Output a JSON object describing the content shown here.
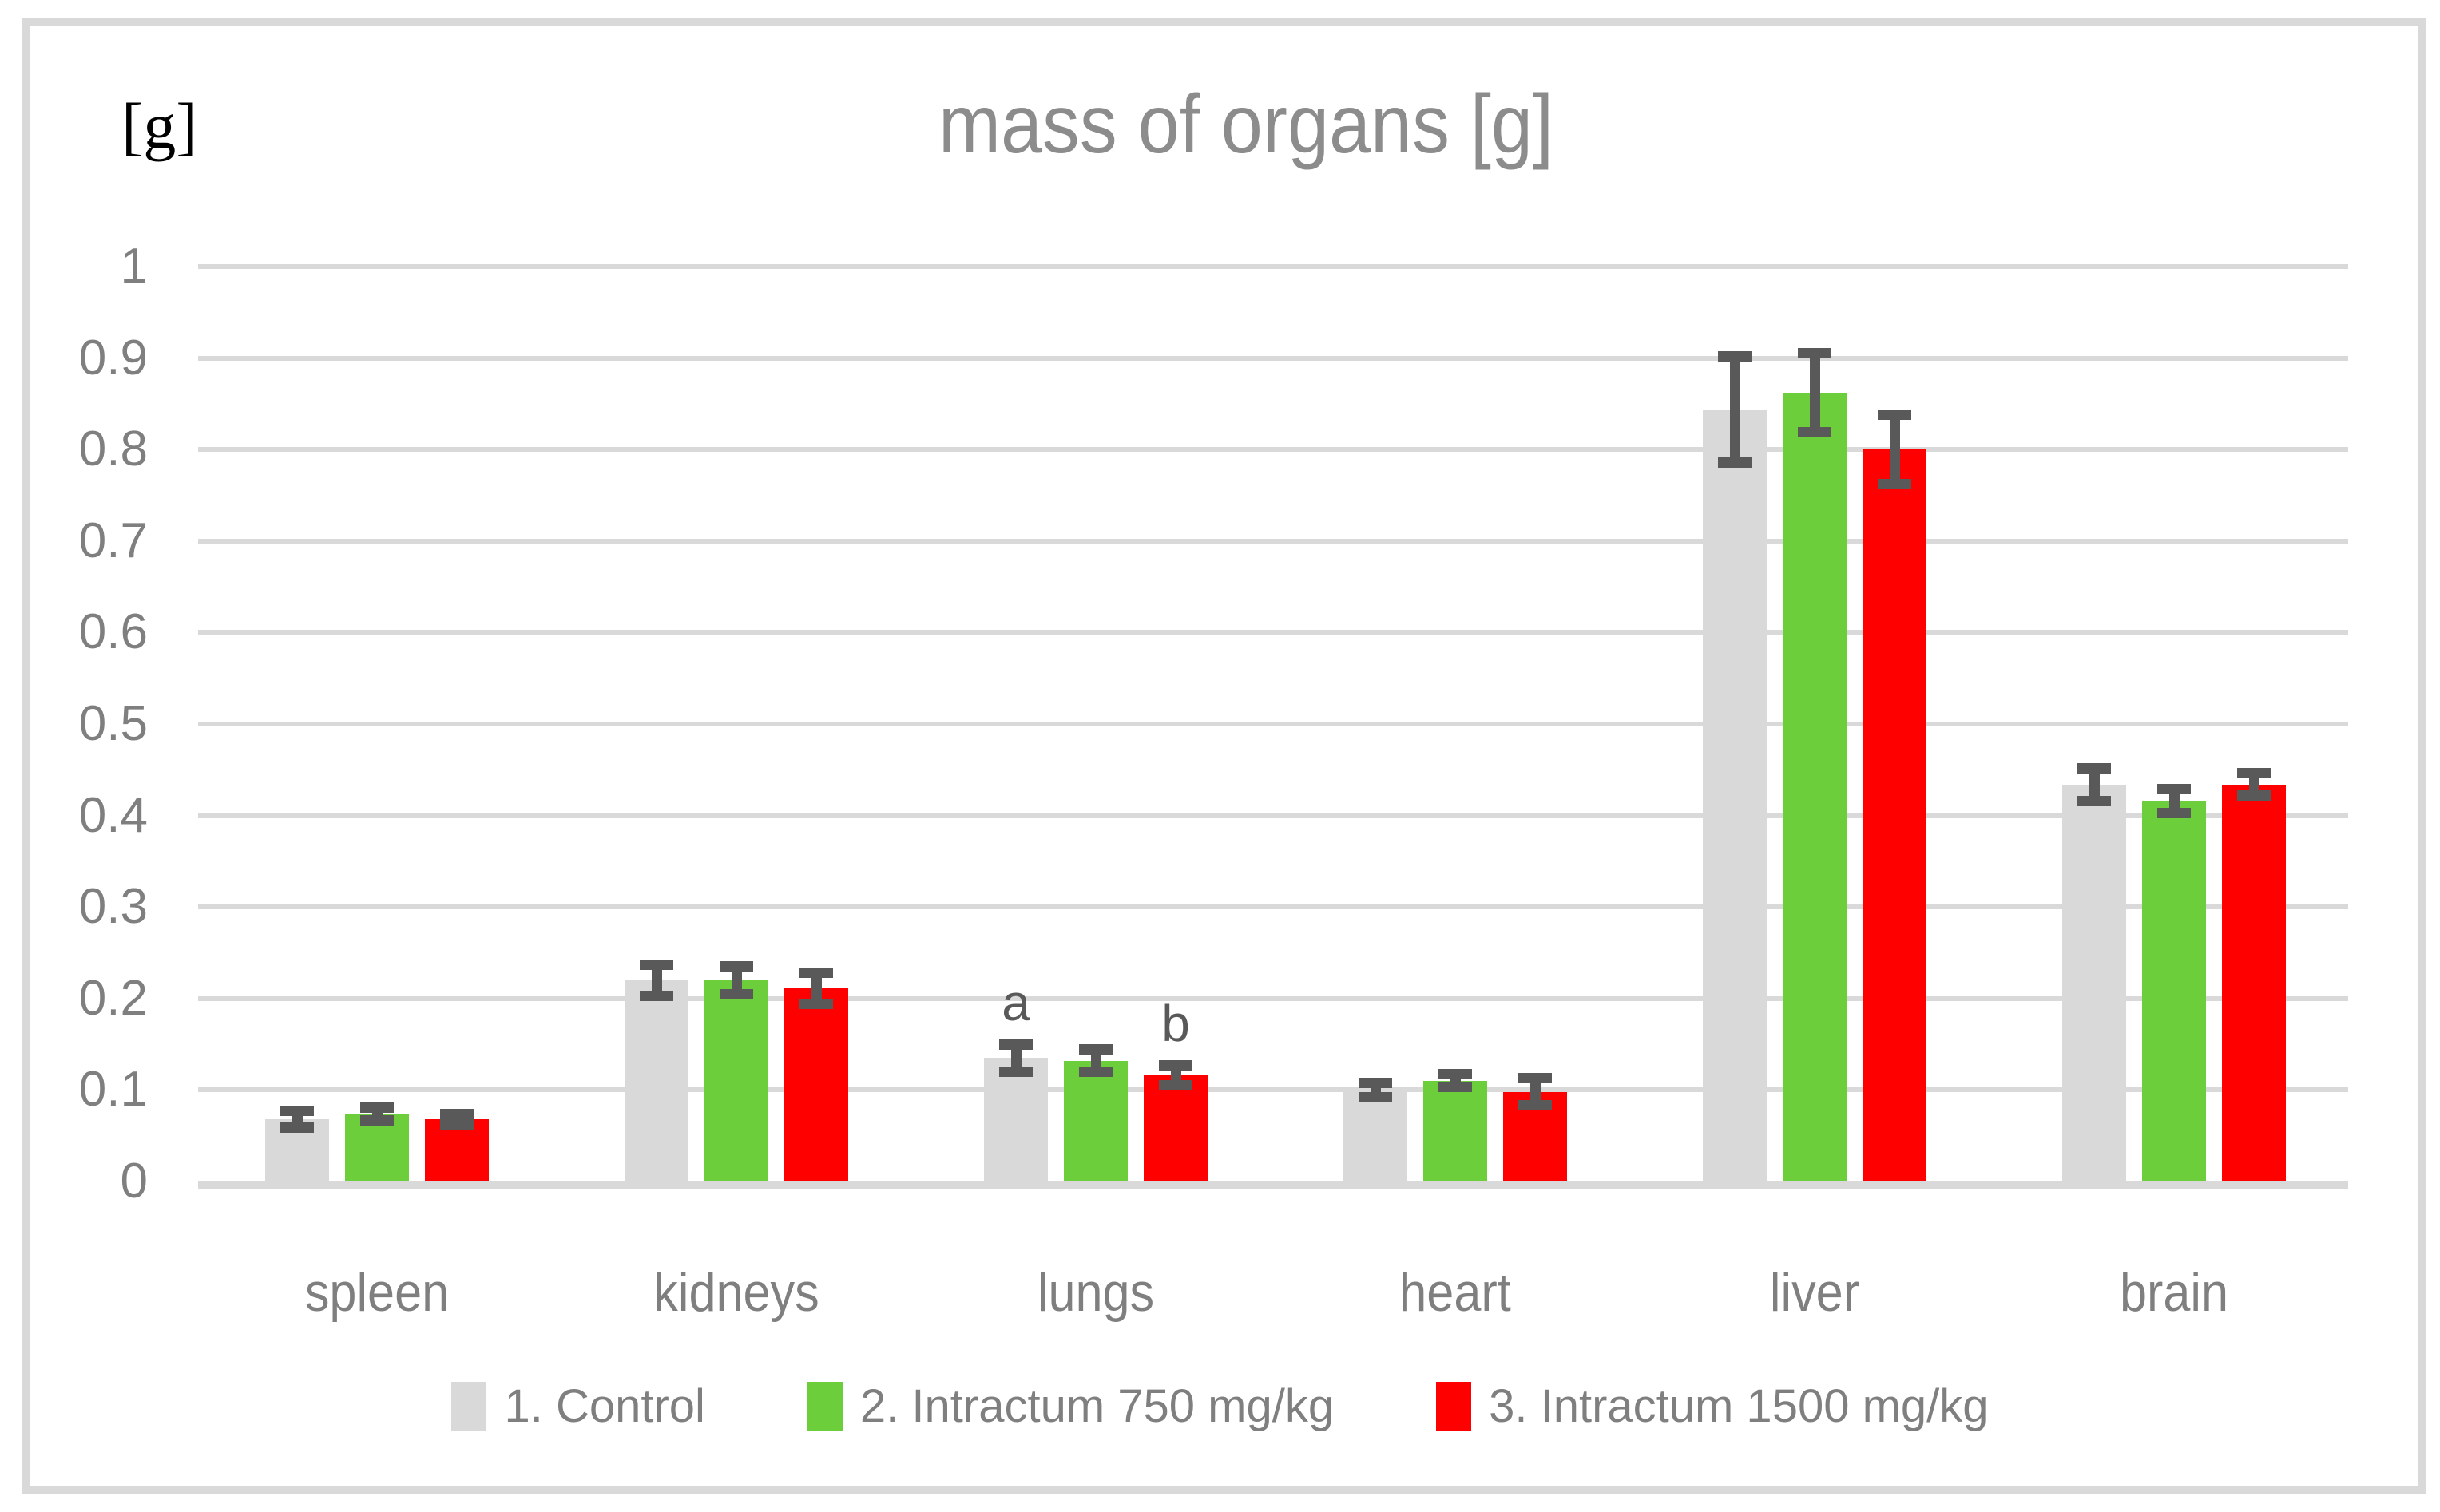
{
  "colors": {
    "frame": "#d9d9d9",
    "gridline": "#d9d9d9",
    "axis_line": "#d9d9d9",
    "error_bar": "#595959",
    "tick_text": "#7f7f7f",
    "category_text": "#7f7f7f",
    "legend_text": "#7f7f7f",
    "title_text": "#8c8c8c",
    "annotation_text": "#595959",
    "unit_label_text": "#000000"
  },
  "chart_data": {
    "type": "bar",
    "title": "mass of organs [g]",
    "ylabel": "[g]",
    "xlabel": "",
    "ylim": [
      0,
      1
    ],
    "ytick_labels": [
      "0",
      "0.1",
      "0.2",
      "0.3",
      "0.4",
      "0.5",
      "0.6",
      "0.7",
      "0.8",
      "0.9",
      "1"
    ],
    "grid": true,
    "error_bars": true,
    "legend_position": "bottom",
    "categories": [
      "spleen",
      "kidneys",
      "lungs",
      "heart",
      "liver",
      "brain"
    ],
    "series": [
      {
        "key": "control",
        "name": "1. Control",
        "color": "#d9d9d9",
        "values": [
          0.068,
          0.22,
          0.135,
          0.1,
          0.844,
          0.434
        ],
        "errors": [
          0.009,
          0.017,
          0.015,
          0.008,
          0.058,
          0.018
        ]
      },
      {
        "key": "intractum-750",
        "name": "2. Intractum 750 mg/kg",
        "color": "#6dce3b",
        "values": [
          0.074,
          0.22,
          0.132,
          0.11,
          0.862,
          0.416
        ],
        "errors": [
          0.007,
          0.015,
          0.012,
          0.007,
          0.043,
          0.013
        ]
      },
      {
        "key": "intractum-1500",
        "name": "3. Intractum 1500 mg/kg",
        "color": "#ff0000",
        "values": [
          0.068,
          0.211,
          0.116,
          0.098,
          0.8,
          0.434
        ],
        "errors": [
          0.006,
          0.017,
          0.011,
          0.015,
          0.038,
          0.012
        ]
      }
    ],
    "annotations": [
      {
        "text": "a",
        "category_index": 2,
        "series_index": 0
      },
      {
        "text": "b",
        "category_index": 2,
        "series_index": 2
      }
    ]
  }
}
